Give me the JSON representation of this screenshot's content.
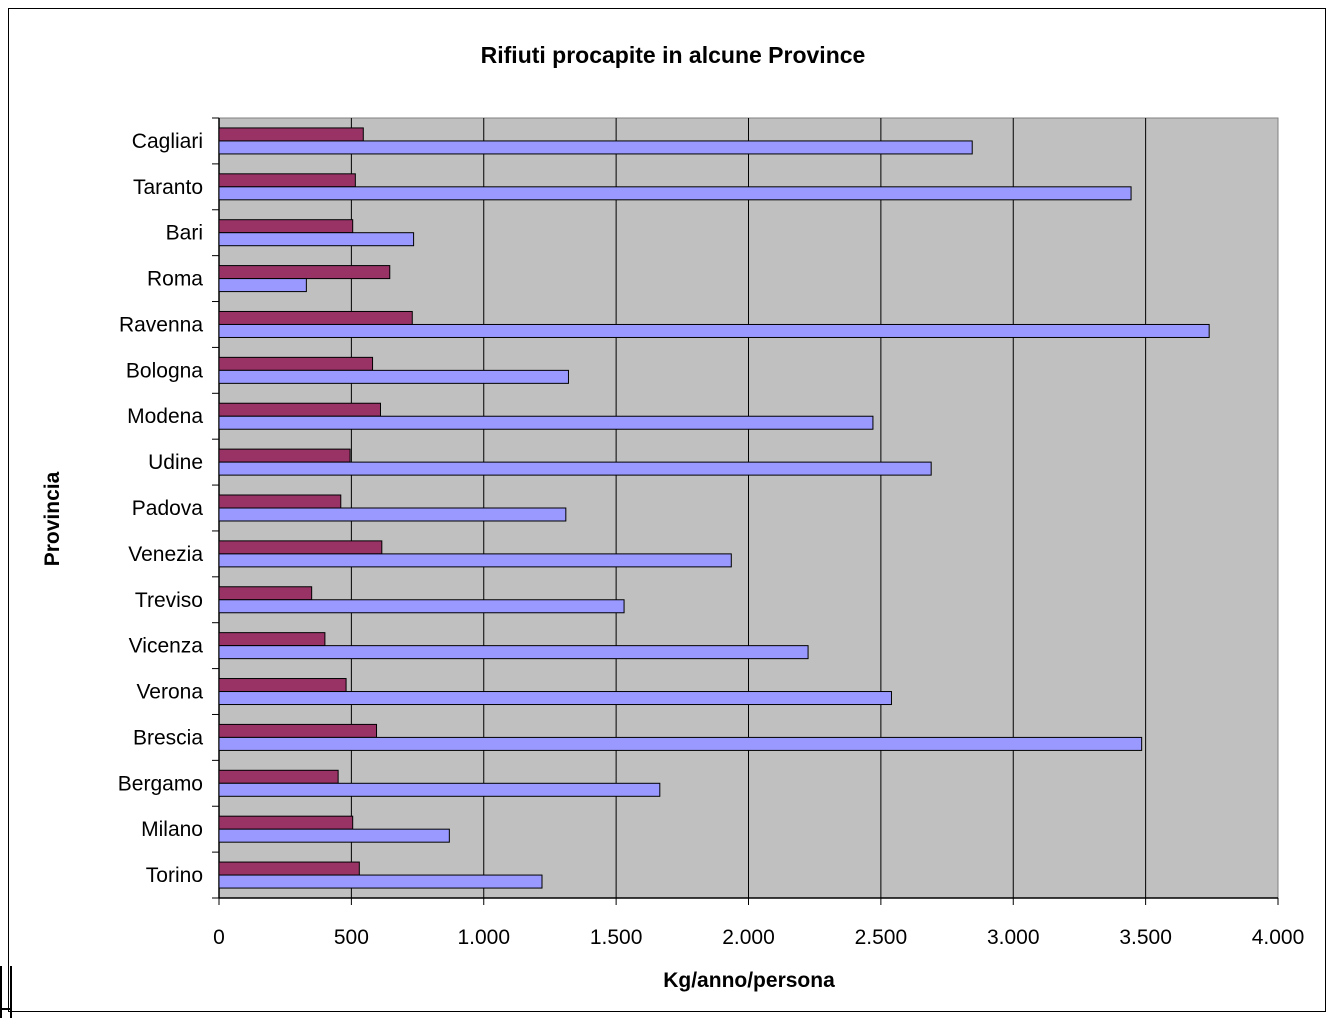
{
  "chart_data": {
    "type": "bar",
    "orientation": "horizontal",
    "title": "Rifiuti procapite in alcune Province",
    "xlabel": "Kg/anno/persona",
    "ylabel": "Provincia",
    "categories": [
      "Cagliari",
      "Taranto",
      "Bari",
      "Roma",
      "Ravenna",
      "Bologna",
      "Modena",
      "Udine",
      "Padova",
      "Venezia",
      "Treviso",
      "Vicenza",
      "Verona",
      "Brescia",
      "Bergamo",
      "Milano",
      "Torino"
    ],
    "series": [
      {
        "values": [
          545,
          515,
          505,
          645,
          730,
          580,
          610,
          495,
          460,
          615,
          350,
          400,
          480,
          595,
          450,
          505,
          530
        ],
        "color": "#993366"
      },
      {
        "values": [
          2845,
          3445,
          735,
          330,
          3740,
          1320,
          2470,
          2690,
          1310,
          1935,
          1530,
          2225,
          2540,
          3485,
          1665,
          870,
          1220
        ],
        "color": "#9999ff"
      }
    ],
    "xlim": [
      0,
      4000
    ],
    "xticks": [
      0,
      500,
      1000,
      1500,
      2000,
      2500,
      3000,
      3500,
      4000
    ],
    "xtick_labels": [
      "0",
      "500",
      "1.000",
      "1.500",
      "2.000",
      "2.500",
      "3.000",
      "3.500",
      "4.000"
    ],
    "grid": true,
    "plot_background": "#c0c0c0",
    "legend": "none"
  }
}
